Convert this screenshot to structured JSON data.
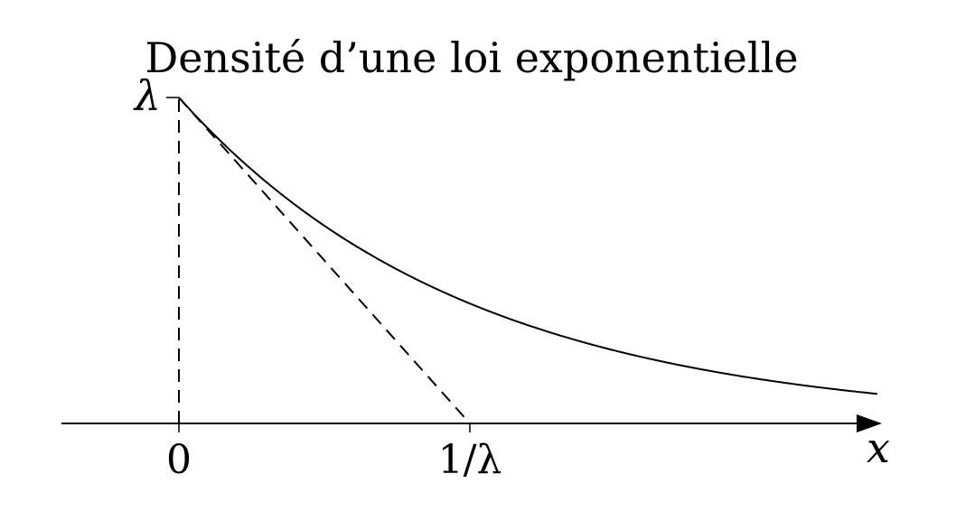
{
  "chart_data": {
    "type": "line",
    "title": "Densité d’une loi exponentielle",
    "xlabel": "x",
    "ylabel": "",
    "function": "λ·e^(−λx)",
    "rate": 1,
    "xlim": [
      -0.4,
      2.4
    ],
    "ylim": [
      0,
      1
    ],
    "x_ticks": [
      {
        "value": 0,
        "label": "0"
      },
      {
        "value": 1,
        "label": "1/λ"
      }
    ],
    "y_ticks": [
      {
        "value": 1,
        "label": "λ"
      }
    ],
    "series": [
      {
        "style": "solid",
        "x": [
          0,
          0.25,
          0.5,
          0.75,
          1.0,
          1.25,
          1.5,
          1.75,
          2.0,
          2.25,
          2.4
        ],
        "y": [
          1.0,
          0.779,
          0.607,
          0.472,
          0.368,
          0.287,
          0.223,
          0.174,
          0.135,
          0.105,
          0.091
        ]
      },
      {
        "style": "dashed",
        "x": [
          0,
          1
        ],
        "y": [
          1,
          0
        ]
      },
      {
        "style": "dashed",
        "x": [
          0,
          0
        ],
        "y": [
          0,
          1
        ]
      }
    ],
    "grid": false,
    "legend": "none"
  },
  "colors": {
    "ink": "#000000",
    "background": "#ffffff"
  }
}
